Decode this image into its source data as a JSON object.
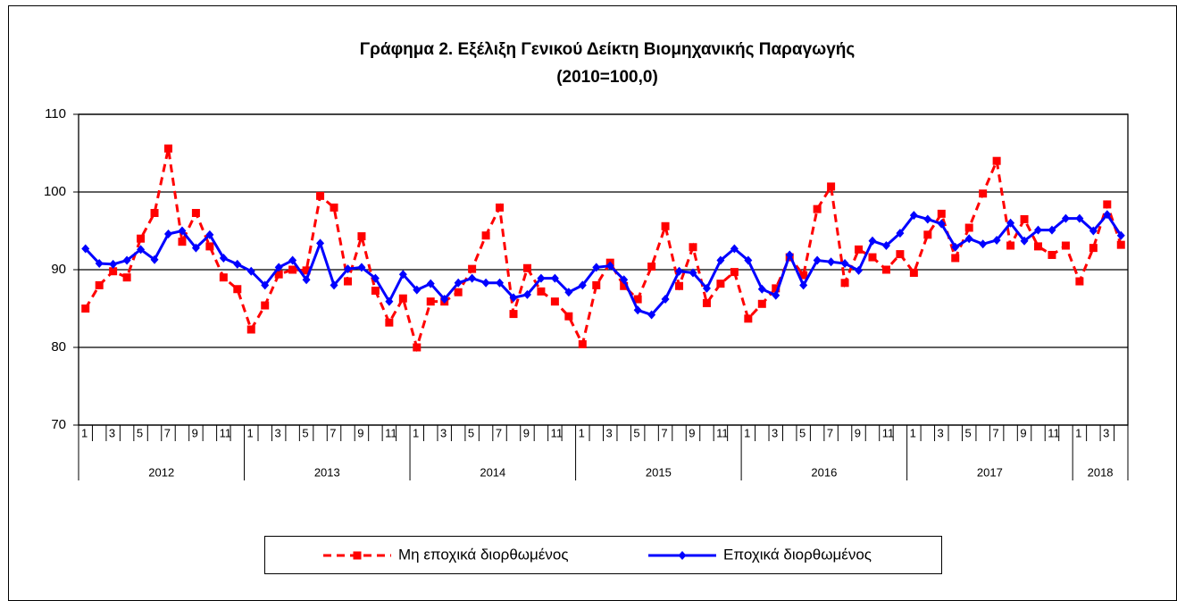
{
  "chart_data": {
    "type": "line",
    "title": "Γράφημα 2. Εξέλιξη Γενικού  Δείκτη Βιομηχανικής  Παραγωγής",
    "subtitle": "(2010=100,0)",
    "categories": [
      "1",
      null,
      "3",
      null,
      "5",
      null,
      "7",
      null,
      "9",
      null,
      "11",
      null,
      "1",
      null,
      "3",
      null,
      "5",
      null,
      "7",
      null,
      "9",
      null,
      "11",
      null,
      "1",
      null,
      "3",
      null,
      "5",
      null,
      "7",
      null,
      "9",
      null,
      "11",
      null,
      "1",
      null,
      "3",
      null,
      "5",
      null,
      "7",
      null,
      "9",
      null,
      "11",
      null,
      "1",
      null,
      "3",
      null,
      "5",
      null,
      "7",
      null,
      "9",
      null,
      "11",
      null,
      "1",
      null,
      "3",
      null,
      "5",
      null,
      "7",
      null,
      "9",
      null,
      "11",
      null,
      "1",
      null,
      "3",
      null
    ],
    "years": [
      "2012",
      "2013",
      "2014",
      "2015",
      "2016",
      "2017",
      "2018"
    ],
    "series": [
      {
        "name": "Μη εποχικά διορθωμένος",
        "color": "#ff0000",
        "style": "dashed",
        "marker": "square",
        "values": [
          85,
          88,
          89.8,
          89,
          94,
          97.3,
          105.6,
          93.6,
          97.3,
          93,
          89,
          87.5,
          82.3,
          85.4,
          89.4,
          90,
          89.9,
          99.5,
          98,
          88.5,
          94.3,
          87.3,
          83.2,
          86.3,
          80,
          85.9,
          85.9,
          87.1,
          90.1,
          94.4,
          98,
          84.3,
          90.2,
          87.2,
          85.9,
          84,
          80.4,
          88,
          90.9,
          87.9,
          86.2,
          90.4,
          95.6,
          87.9,
          92.9,
          85.7,
          88.2,
          89.7,
          83.7,
          85.6,
          87.6,
          91.6,
          89.3,
          97.8,
          100.7,
          88.3,
          92.6,
          91.6,
          90,
          92,
          89.6,
          94.5,
          97.2,
          91.5,
          95.4,
          99.8,
          104,
          93.1,
          96.5,
          93,
          91.9,
          93.1,
          88.5,
          92.8,
          98.4,
          93.2
        ]
      },
      {
        "name": "Εποχικά διορθωμένος",
        "color": "#0000ff",
        "style": "solid",
        "marker": "diamond",
        "values": [
          92.7,
          90.8,
          90.7,
          91.2,
          92.6,
          91.3,
          94.6,
          95,
          92.8,
          94.5,
          91.5,
          90.7,
          89.8,
          88,
          90.3,
          91.2,
          88.7,
          93.4,
          88,
          90.1,
          90.3,
          88.9,
          85.9,
          89.4,
          87.4,
          88.2,
          86.2,
          88.3,
          88.9,
          88.3,
          88.3,
          86.4,
          86.8,
          88.9,
          88.9,
          87.1,
          88,
          90.3,
          90.5,
          88.7,
          84.8,
          84.2,
          86.2,
          89.8,
          89.6,
          87.6,
          91.2,
          92.7,
          91.2,
          87.5,
          86.7,
          91.9,
          88,
          91.2,
          91,
          90.8,
          89.9,
          93.7,
          93.1,
          94.7,
          97,
          96.5,
          95.9,
          92.9,
          94,
          93.3,
          93.8,
          96,
          93.7,
          95.1,
          95.1,
          96.6,
          96.6,
          95,
          97.1,
          94.4
        ]
      }
    ],
    "ylim": [
      70,
      110
    ],
    "yticks": [
      70,
      80,
      90,
      100,
      110
    ],
    "grid": true
  }
}
